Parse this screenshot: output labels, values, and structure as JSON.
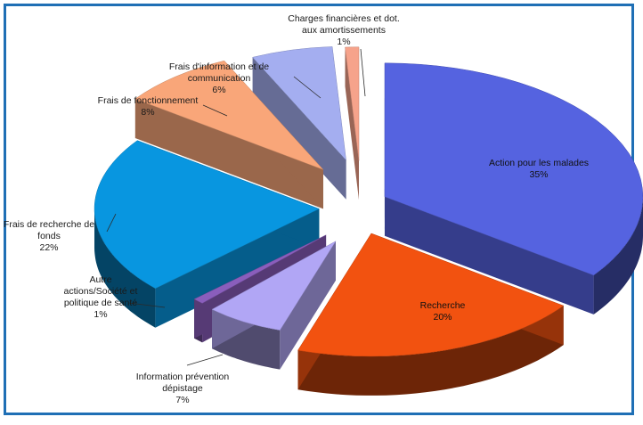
{
  "chart_data": {
    "type": "pie",
    "title": "",
    "slices": [
      {
        "label": "Action pour les malades",
        "value": 35,
        "value_label": "35%",
        "color": "#5563e0"
      },
      {
        "label": "Recherche",
        "value": 20,
        "value_label": "20%",
        "color": "#f25210"
      },
      {
        "label": "Information prévention dépistage",
        "value": 7,
        "value_label": "7%",
        "color": "#b1a6f5"
      },
      {
        "label": "Autre actions/Société et politique de santé",
        "value": 1,
        "value_label": "1%",
        "color": "#8a5ebc"
      },
      {
        "label": "Frais de recherche de fonds",
        "value": 22,
        "value_label": "22%",
        "color": "#0896e0"
      },
      {
        "label": "Frais de fonctionnement",
        "value": 8,
        "value_label": "8%",
        "color": "#f9a679"
      },
      {
        "label": "Frais d'information et de communication",
        "value": 6,
        "value_label": "6%",
        "color": "#a4aef0"
      },
      {
        "label": "Charges financières et dot. aux amortissements",
        "value": 1,
        "value_label": "1%",
        "color": "#f6a38b"
      }
    ],
    "label_lines": [
      [
        "Action pour les malades",
        "35%"
      ],
      [
        "Recherche",
        "20%"
      ],
      [
        "Information prévention",
        "dépistage",
        "7%"
      ],
      [
        "Autre",
        "actions/Société et",
        "politique de santé",
        "1%"
      ],
      [
        "Frais de recherche de",
        "fonds",
        "22%"
      ],
      [
        "Frais de fonctionnement",
        "8%"
      ],
      [
        "Frais d'information et de",
        "communication",
        "6%"
      ],
      [
        "Charges financières et dot.",
        "aux amortissements",
        "1%"
      ]
    ],
    "style": "3d exploded pie",
    "legend": "none"
  }
}
